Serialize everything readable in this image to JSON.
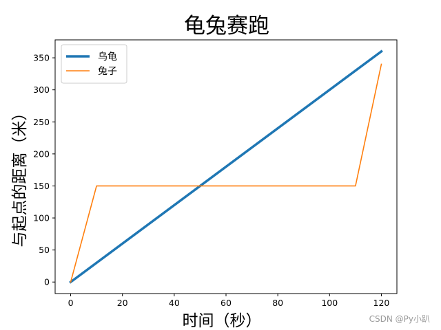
{
  "watermark": "CSDN @Py小趴",
  "chart_data": {
    "type": "line",
    "title": "龟兔赛跑",
    "xlabel": "时间（秒）",
    "ylabel": "与起点的距离（米）",
    "xlim": [
      -6,
      126
    ],
    "ylim": [
      -18,
      378
    ],
    "xticks": [
      0,
      20,
      40,
      60,
      80,
      100,
      120
    ],
    "yticks": [
      0,
      50,
      100,
      150,
      200,
      250,
      300,
      350
    ],
    "grid": false,
    "legend": "upper-left",
    "series": [
      {
        "name": "乌龟",
        "color": "#1f77b4",
        "x": [
          0,
          120
        ],
        "y": [
          0,
          360
        ]
      },
      {
        "name": "兔子",
        "color": "#ff7f0e",
        "x": [
          0,
          10,
          110,
          120
        ],
        "y": [
          0,
          150,
          150,
          340
        ]
      }
    ]
  }
}
